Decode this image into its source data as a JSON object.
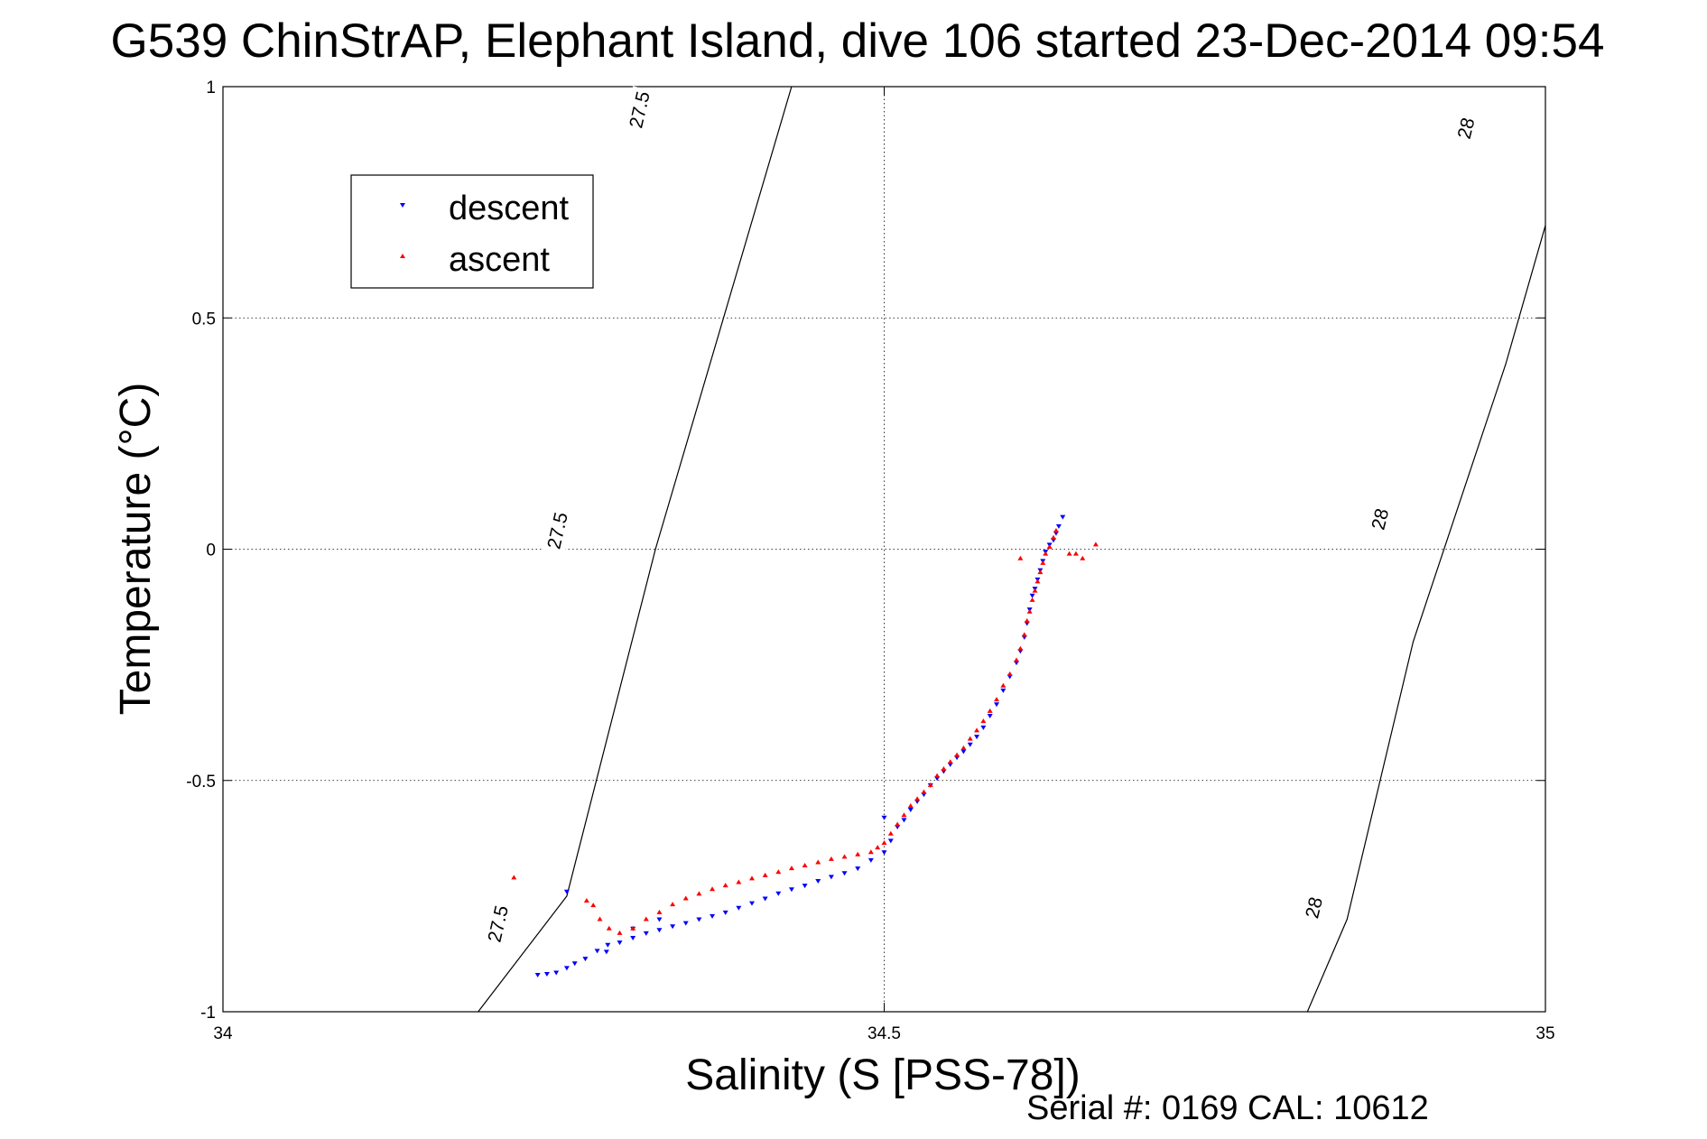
{
  "chart_data": {
    "type": "scatter",
    "title": "G539 ChinStrAP, Elephant Island, dive 106 started 23-Dec-2014 09:54",
    "xlabel": "Salinity (S [PSS-78])",
    "ylabel": "Temperature (°C)",
    "xlim": [
      34,
      35
    ],
    "ylim": [
      -1,
      1
    ],
    "xticks": [
      "34",
      "34.5",
      "35"
    ],
    "yticks": [
      "-1",
      "-0.5",
      "0",
      "0.5",
      "1"
    ],
    "grid": true,
    "legend": {
      "position": "top-left",
      "entries": [
        "descent",
        "ascent"
      ]
    },
    "footer": "Serial #: 0169 CAL: 10612",
    "isopycnals": [
      {
        "label": "27.5",
        "points": [
          [
            34.193,
            -1.0
          ],
          [
            34.26,
            -0.75
          ],
          [
            34.327,
            0.0
          ],
          [
            34.43,
            1.0
          ]
        ]
      },
      {
        "label": "28",
        "points": [
          [
            34.82,
            -1.0
          ],
          [
            34.85,
            -0.8
          ],
          [
            34.9,
            -0.2
          ],
          [
            34.97,
            0.4
          ],
          [
            35.0,
            0.7
          ]
        ]
      }
    ],
    "contour_labels": [
      {
        "text": "27.5",
        "x": 34.208,
        "y": -0.81
      },
      {
        "text": "27.5",
        "x": 34.253,
        "y": 0.04
      },
      {
        "text": "27.5",
        "x": 34.315,
        "y": 0.95
      },
      {
        "text": "28",
        "x": 34.825,
        "y": -0.775
      },
      {
        "text": "28",
        "x": 34.875,
        "y": 0.065
      },
      {
        "text": "28",
        "x": 34.94,
        "y": 0.91
      }
    ],
    "series": [
      {
        "name": "descent",
        "color": "#0000ff",
        "marker": "triangle-down",
        "x": [
          34.238,
          34.245,
          34.252,
          34.26,
          34.266,
          34.274,
          34.283,
          34.291,
          34.3,
          34.31,
          34.32,
          34.33,
          34.34,
          34.35,
          34.36,
          34.37,
          34.38,
          34.39,
          34.4,
          34.41,
          34.42,
          34.43,
          34.44,
          34.45,
          34.46,
          34.47,
          34.48,
          34.49,
          34.5,
          34.505,
          34.51,
          34.515,
          34.52,
          34.525,
          34.53,
          34.535,
          34.54,
          34.545,
          34.55,
          34.555,
          34.56,
          34.565,
          34.57,
          34.575,
          34.58,
          34.585,
          34.59,
          34.595,
          34.6,
          34.603,
          34.606,
          34.608,
          34.61,
          34.612,
          34.614,
          34.616,
          34.618,
          34.62,
          34.622,
          34.625,
          34.628,
          34.63,
          34.632,
          34.635,
          34.26,
          34.29,
          34.31,
          34.33,
          34.5
        ],
        "y": [
          -0.92,
          -0.918,
          -0.915,
          -0.905,
          -0.895,
          -0.885,
          -0.868,
          -0.855,
          -0.85,
          -0.84,
          -0.83,
          -0.823,
          -0.815,
          -0.808,
          -0.8,
          -0.793,
          -0.785,
          -0.775,
          -0.765,
          -0.755,
          -0.744,
          -0.735,
          -0.727,
          -0.717,
          -0.708,
          -0.7,
          -0.69,
          -0.672,
          -0.655,
          -0.63,
          -0.6,
          -0.585,
          -0.563,
          -0.545,
          -0.53,
          -0.51,
          -0.495,
          -0.48,
          -0.465,
          -0.45,
          -0.437,
          -0.422,
          -0.405,
          -0.385,
          -0.36,
          -0.335,
          -0.305,
          -0.275,
          -0.245,
          -0.22,
          -0.19,
          -0.16,
          -0.13,
          -0.1,
          -0.085,
          -0.065,
          -0.045,
          -0.025,
          -0.005,
          0.01,
          0.02,
          0.035,
          0.05,
          0.07,
          -0.74,
          -0.87,
          -0.82,
          -0.8,
          -0.58
        ]
      },
      {
        "name": "ascent",
        "color": "#ff0000",
        "marker": "triangle-up",
        "x": [
          34.22,
          34.275,
          34.28,
          34.285,
          34.292,
          34.3,
          34.31,
          34.32,
          34.33,
          34.34,
          34.35,
          34.36,
          34.37,
          34.38,
          34.39,
          34.4,
          34.41,
          34.42,
          34.43,
          34.44,
          34.45,
          34.46,
          34.47,
          34.48,
          34.49,
          34.495,
          34.5,
          34.505,
          34.51,
          34.515,
          34.52,
          34.525,
          34.53,
          34.535,
          34.54,
          34.545,
          34.55,
          34.555,
          34.56,
          34.565,
          34.57,
          34.575,
          34.58,
          34.585,
          34.59,
          34.595,
          34.6,
          34.603,
          34.606,
          34.608,
          34.61,
          34.612,
          34.614,
          34.616,
          34.618,
          34.62,
          34.622,
          34.625,
          34.628,
          34.63,
          34.64,
          34.65,
          34.66,
          34.645,
          34.603
        ],
        "y": [
          -0.71,
          -0.76,
          -0.77,
          -0.8,
          -0.82,
          -0.83,
          -0.82,
          -0.8,
          -0.785,
          -0.768,
          -0.755,
          -0.745,
          -0.735,
          -0.727,
          -0.72,
          -0.712,
          -0.705,
          -0.698,
          -0.69,
          -0.684,
          -0.677,
          -0.67,
          -0.665,
          -0.66,
          -0.655,
          -0.645,
          -0.635,
          -0.615,
          -0.595,
          -0.575,
          -0.555,
          -0.54,
          -0.525,
          -0.51,
          -0.49,
          -0.475,
          -0.46,
          -0.445,
          -0.43,
          -0.41,
          -0.392,
          -0.372,
          -0.35,
          -0.325,
          -0.295,
          -0.27,
          -0.24,
          -0.215,
          -0.185,
          -0.155,
          -0.135,
          -0.11,
          -0.09,
          -0.07,
          -0.05,
          -0.03,
          -0.01,
          0.005,
          0.025,
          0.04,
          -0.01,
          -0.02,
          0.01,
          -0.01,
          -0.02
        ]
      }
    ]
  }
}
